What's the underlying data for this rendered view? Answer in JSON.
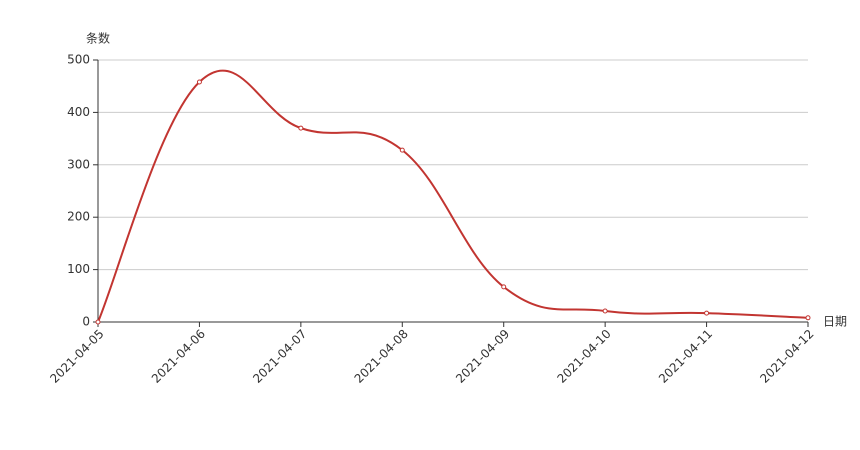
{
  "chart_data": {
    "type": "line",
    "y_axis_name": "条数",
    "x_axis_name": "日期",
    "categories": [
      "2021-04-05",
      "2021-04-06",
      "2021-04-07",
      "2021-04-08",
      "2021-04-09",
      "2021-04-10",
      "2021-04-11",
      "2021-04-12"
    ],
    "series": [
      {
        "color": "#c23531",
        "values": [
          0,
          458,
          370,
          328,
          67,
          21,
          17,
          8
        ]
      }
    ],
    "ylim": [
      0,
      500
    ],
    "yticks": [
      0,
      100,
      200,
      300,
      400,
      500
    ],
    "grid": true,
    "smooth": true
  }
}
